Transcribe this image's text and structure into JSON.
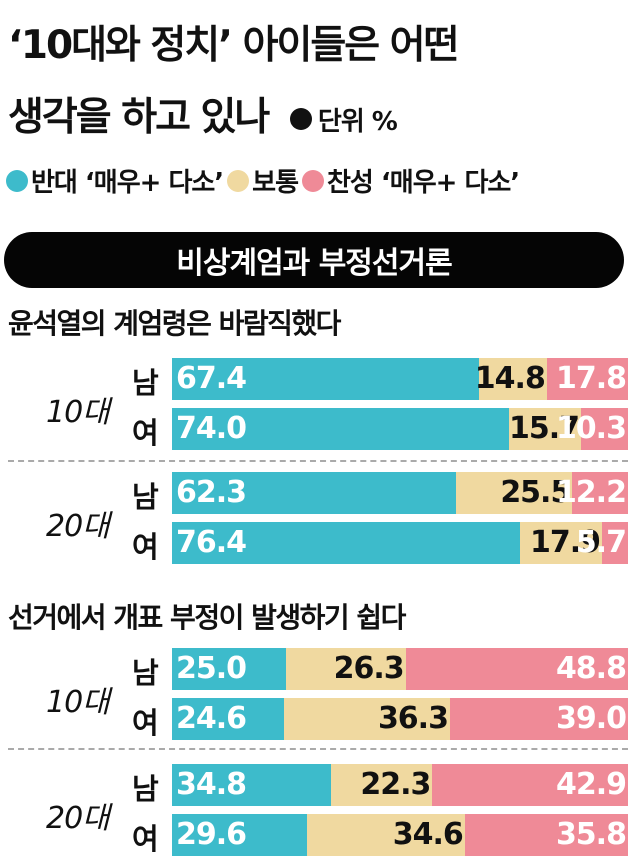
{
  "title_line1": "‘10대와 정치’ 아이들은 어떤",
  "title_line2": "생각을 하고 있나",
  "unit_label": "단위 %",
  "legend": [
    {
      "label": "반대 ‘매우+ 다소’",
      "color": "#3dbbcb"
    },
    {
      "label": "보통",
      "color": "#f0d9a0"
    },
    {
      "label": "찬성 ‘매우+ 다소’",
      "color": "#ef8a97"
    }
  ],
  "banner": "비상계엄과 부정선거론",
  "colors": {
    "oppose": "#3dbbcb",
    "neutral": "#f0d9a0",
    "favor": "#ef8a97"
  },
  "chart_data": [
    {
      "type": "bar",
      "stacked": true,
      "orientation": "horizontal",
      "title": "윤석열의 계엄령은 바람직했다",
      "groups": [
        {
          "age": "10대",
          "rows": [
            {
              "sex": "남",
              "values": [
                67.4,
                14.8,
                17.8
              ]
            },
            {
              "sex": "여",
              "values": [
                74.0,
                15.7,
                10.3
              ]
            }
          ]
        },
        {
          "age": "20대",
          "rows": [
            {
              "sex": "남",
              "values": [
                62.3,
                25.5,
                12.2
              ]
            },
            {
              "sex": "여",
              "values": [
                76.4,
                17.9,
                5.7
              ]
            }
          ]
        }
      ],
      "series": [
        "반대 ‘매우+ 다소’",
        "보통",
        "찬성 ‘매우+ 다소’"
      ]
    },
    {
      "type": "bar",
      "stacked": true,
      "orientation": "horizontal",
      "title": "선거에서 개표 부정이 발생하기 쉽다",
      "groups": [
        {
          "age": "10대",
          "rows": [
            {
              "sex": "남",
              "values": [
                25.0,
                26.3,
                48.8
              ]
            },
            {
              "sex": "여",
              "values": [
                24.6,
                36.3,
                39.0
              ]
            }
          ]
        },
        {
          "age": "20대",
          "rows": [
            {
              "sex": "남",
              "values": [
                34.8,
                22.3,
                42.9
              ]
            },
            {
              "sex": "여",
              "values": [
                29.6,
                34.6,
                35.8
              ]
            }
          ]
        }
      ],
      "series": [
        "반대 ‘매우+ 다소’",
        "보통",
        "찬성 ‘매우+ 다소’"
      ]
    }
  ]
}
